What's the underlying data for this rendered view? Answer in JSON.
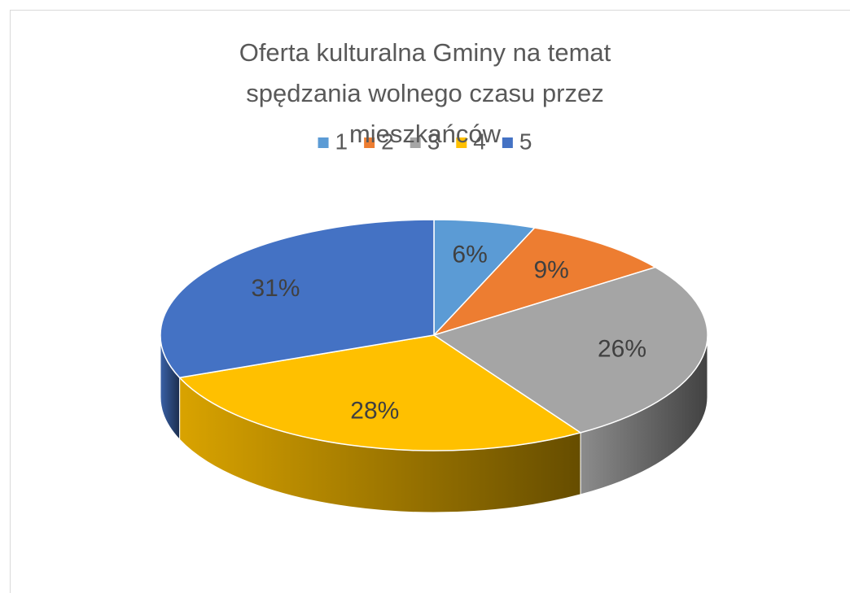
{
  "chart_data": {
    "type": "pie",
    "title": "Oferta kulturalna Gminy na temat spędzania wolnego czasu przez mieszkańców",
    "categories": [
      "1",
      "2",
      "3",
      "4",
      "5"
    ],
    "values": [
      6,
      9,
      26,
      28,
      31
    ],
    "value_labels": [
      "6%",
      "9%",
      "26%",
      "28%",
      "31%"
    ],
    "colors": [
      "#5b9bd5",
      "#ed7d31",
      "#a5a5a5",
      "#ffc000",
      "#4472c4"
    ],
    "legend": "top"
  }
}
